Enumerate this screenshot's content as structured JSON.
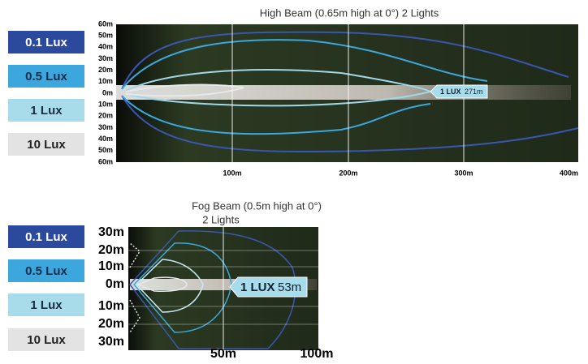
{
  "legend": [
    "0.1 Lux",
    "0.5 Lux",
    "1 Lux",
    "10 Lux"
  ],
  "high_beam": {
    "title": "High Beam (0.65m high at 0°) 2 Lights",
    "y_labels": [
      "60m",
      "50m",
      "40m",
      "30m",
      "20m",
      "10m",
      "0m",
      "10m",
      "20m",
      "30m",
      "40m",
      "50m",
      "60m"
    ],
    "x_labels": [
      "100m",
      "200m",
      "300m",
      "400m"
    ],
    "callout": {
      "label": "1 LUX",
      "distance": "271m"
    }
  },
  "fog_beam": {
    "title": [
      "Fog Beam (0.5m high at 0°)",
      "2 Lights"
    ],
    "y_labels": [
      "30m",
      "20m",
      "10m",
      "0m",
      "10m",
      "20m",
      "30m"
    ],
    "x_labels": [
      "50m",
      "100m"
    ],
    "callout": {
      "label": "1 LUX",
      "distance": "53m"
    }
  }
}
